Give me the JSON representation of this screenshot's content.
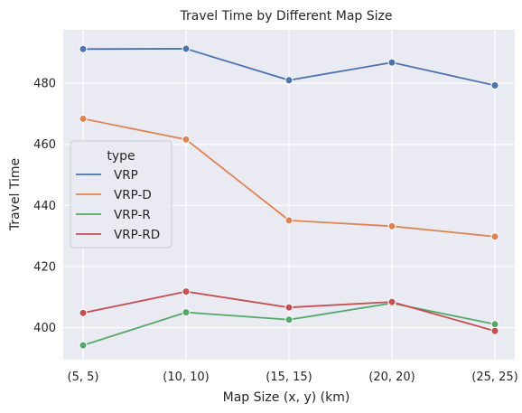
{
  "chart_data": {
    "type": "line",
    "title": "Travel Time by Different Map Size",
    "xlabel": "Map Size (x, y) (km)",
    "ylabel": "Travel Time",
    "categories": [
      "(5, 5)",
      "(10, 10)",
      "(15, 15)",
      "(20, 20)",
      "(25, 25)"
    ],
    "ylim": [
      389.5,
      497.5
    ],
    "yticks": [
      400,
      420,
      440,
      460,
      480
    ],
    "grid": true,
    "legend": {
      "title": "type",
      "placement": "center-left"
    },
    "series": [
      {
        "name": "VRP",
        "color": "#4c72b0",
        "values": [
          491.2,
          491.3,
          481.0,
          486.8,
          479.3
        ]
      },
      {
        "name": "VRP-D",
        "color": "#dd8452",
        "values": [
          468.4,
          461.6,
          435.1,
          433.2,
          429.8
        ]
      },
      {
        "name": "VRP-R",
        "color": "#55a868",
        "values": [
          394.2,
          405.0,
          402.6,
          408.0,
          401.1
        ]
      },
      {
        "name": "VRP-RD",
        "color": "#c44e52",
        "values": [
          404.8,
          411.8,
          406.6,
          408.4,
          398.9
        ]
      }
    ]
  }
}
